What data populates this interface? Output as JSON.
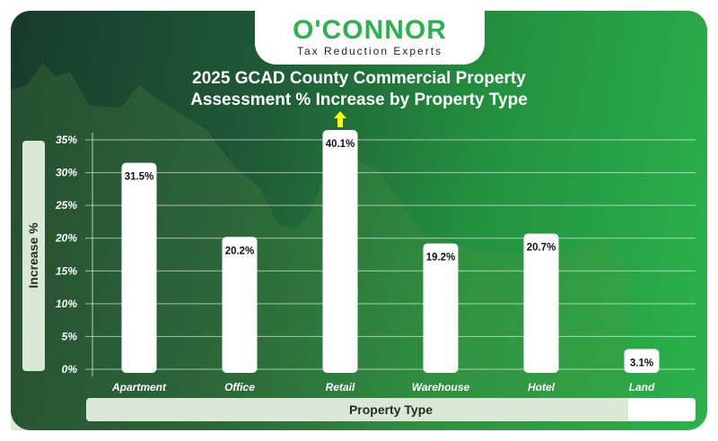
{
  "logo": {
    "name": "O'CONNOR",
    "tagline": "Tax Reduction Experts"
  },
  "chart_data": {
    "type": "bar",
    "title": "2025 GCAD County Commercial Property Assessment % Increase by Property Type",
    "title_lines": [
      "2025 GCAD County Commercial Property",
      "Assessment % Increase by Property Type"
    ],
    "xlabel": "Property Type",
    "ylabel": "Increase %",
    "categories": [
      "Apartment",
      "Office",
      "Retail",
      "Warehouse",
      "Hotel",
      "Land"
    ],
    "values": [
      31.5,
      20.2,
      40.1,
      19.2,
      20.7,
      3.1
    ],
    "data_labels": [
      "31.5%",
      "20.2%",
      "40.1%",
      "19.2%",
      "20.7%",
      "3.1%"
    ],
    "ylim": [
      0,
      35
    ],
    "yticks": [
      "0%",
      "5%",
      "10%",
      "15%",
      "20%",
      "25%",
      "30%",
      "35%"
    ],
    "grid": true,
    "overflow_indicator": {
      "category": "Retail",
      "icon": "up-arrow-icon",
      "color": "#ffff00"
    },
    "colors": {
      "bar": "#ffffff",
      "bg_start": "#173a2c",
      "bg_end": "#2bb24c"
    }
  }
}
